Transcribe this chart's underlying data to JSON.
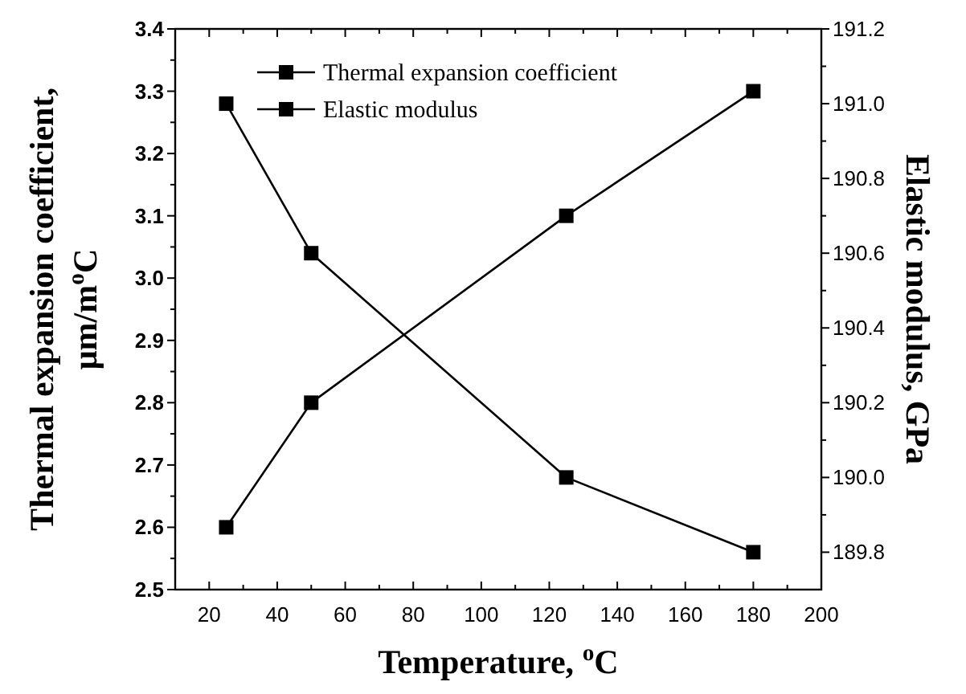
{
  "chart_data": {
    "type": "line",
    "xlabel": "Temperature, $^{o}$C",
    "ylabel": "Thermal expansion coefficient,\nμm/m$^{o}$C",
    "y2label": "Elastic modulus, GPa",
    "x": [
      25,
      50,
      125,
      180
    ],
    "series": [
      {
        "name": "Thermal expansion coefficient",
        "color": "#000000",
        "values": [
          2.6,
          2.8,
          3.1,
          3.3
        ]
      },
      {
        "name": "Elastic modulus",
        "color": "#000000",
        "values": [
          191.0,
          190.6,
          190.0,
          189.8
        ],
        "axis": "y2"
      }
    ],
    "xlim": [
      10,
      200
    ],
    "xticks": [
      20,
      {
        "value": 30,
        "label": null
      },
      40,
      {
        "value": 50,
        "label": null
      },
      60,
      {
        "value": 70,
        "label": null
      },
      80,
      {
        "value": 90,
        "label": null
      },
      100,
      {
        "value": 110,
        "label": null
      },
      120,
      {
        "value": 130,
        "label": null
      },
      140,
      {
        "value": 150,
        "label": null
      },
      160,
      {
        "value": 170,
        "label": null
      },
      180,
      {
        "value": 190,
        "label": null
      },
      200
    ],
    "ylim": [
      2.5,
      3.4
    ],
    "yticks": [
      {
        "value": 2.5,
        "label": "2.5"
      },
      {
        "value": 2.55,
        "label": null
      },
      {
        "value": 2.6,
        "label": "2.6"
      },
      {
        "value": 2.65,
        "label": null
      },
      {
        "value": 2.7,
        "label": "2.7"
      },
      {
        "value": 2.75,
        "label": null
      },
      {
        "value": 2.8,
        "label": "2.8"
      },
      {
        "value": 2.85,
        "label": null
      },
      {
        "value": 2.9,
        "label": "2.9"
      },
      {
        "value": 2.95,
        "label": null
      },
      {
        "value": 3.0,
        "label": "3.0"
      },
      {
        "value": 3.05,
        "label": null
      },
      {
        "value": 3.1,
        "label": "3.1"
      },
      {
        "value": 3.15,
        "label": null
      },
      {
        "value": 3.2,
        "label": "3.2"
      },
      {
        "value": 3.25,
        "label": null
      },
      {
        "value": 3.3,
        "label": "3.3"
      },
      {
        "value": 3.35,
        "label": null
      },
      {
        "value": 3.4,
        "label": "3.4"
      }
    ],
    "y2lim": [
      189.7,
      191.2
    ],
    "y2ticks": [
      {
        "value": 189.8,
        "label": "189.8"
      },
      {
        "value": 189.9,
        "label": null
      },
      {
        "value": 190.0,
        "label": "190.0"
      },
      {
        "value": 190.1,
        "label": null
      },
      {
        "value": 190.2,
        "label": "190.2"
      },
      {
        "value": 190.3,
        "label": null
      },
      {
        "value": 190.4,
        "label": "190.4"
      },
      {
        "value": 190.5,
        "label": null
      },
      {
        "value": 190.6,
        "label": "190.6"
      },
      {
        "value": 190.7,
        "label": null
      },
      {
        "value": 190.8,
        "label": "190.8"
      },
      {
        "value": 190.9,
        "label": null
      },
      {
        "value": 191.0,
        "label": "191.0"
      },
      {
        "value": 191.1,
        "label": null
      },
      {
        "value": 191.2,
        "label": "191.2"
      }
    ],
    "marker": "square",
    "line_style": "solid",
    "legend": "top"
  }
}
